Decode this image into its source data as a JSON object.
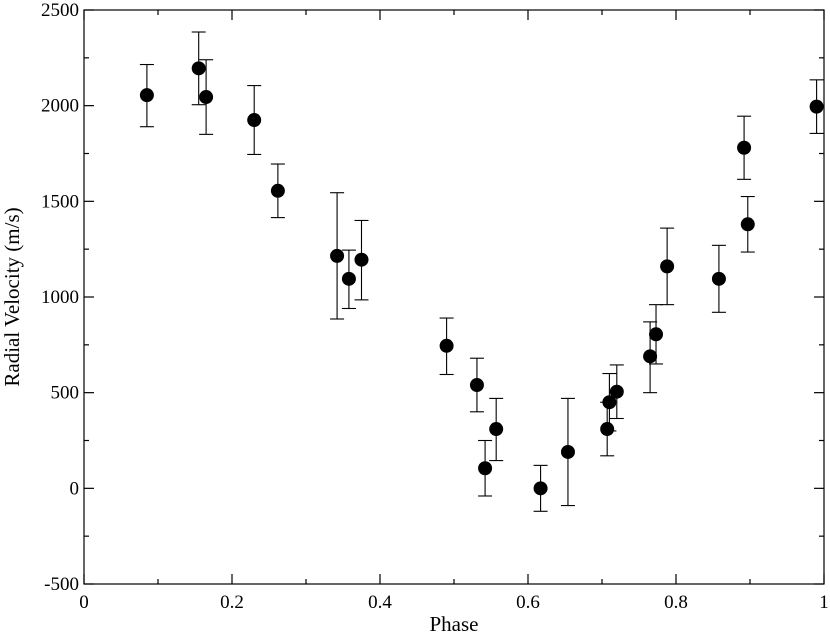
{
  "chart_data": {
    "type": "scatter",
    "title": "",
    "xlabel": "Phase",
    "ylabel": "Radial Velocity (m/s)",
    "xlim": [
      0,
      1
    ],
    "ylim": [
      -500,
      2500
    ],
    "grid": false,
    "legend": "none",
    "x_ticks": [
      "0",
      "0.2",
      "0.4",
      "0.6",
      "0.8",
      "1"
    ],
    "y_ticks": [
      "-500",
      "0",
      "500",
      "1000",
      "1500",
      "2000",
      "2500"
    ],
    "points": [
      {
        "x": 0.085,
        "y": 2055,
        "lo": 1890,
        "hi": 2215
      },
      {
        "x": 0.155,
        "y": 2195,
        "lo": 2005,
        "hi": 2385
      },
      {
        "x": 0.165,
        "y": 2045,
        "lo": 1850,
        "hi": 2240
      },
      {
        "x": 0.23,
        "y": 1925,
        "lo": 1745,
        "hi": 2105
      },
      {
        "x": 0.262,
        "y": 1555,
        "lo": 1415,
        "hi": 1695
      },
      {
        "x": 0.342,
        "y": 1215,
        "lo": 885,
        "hi": 1545
      },
      {
        "x": 0.358,
        "y": 1095,
        "lo": 940,
        "hi": 1245
      },
      {
        "x": 0.375,
        "y": 1195,
        "lo": 985,
        "hi": 1400
      },
      {
        "x": 0.49,
        "y": 745,
        "lo": 595,
        "hi": 890
      },
      {
        "x": 0.531,
        "y": 540,
        "lo": 400,
        "hi": 680
      },
      {
        "x": 0.542,
        "y": 105,
        "lo": -40,
        "hi": 250
      },
      {
        "x": 0.557,
        "y": 310,
        "lo": 145,
        "hi": 470
      },
      {
        "x": 0.617,
        "y": 0,
        "lo": -120,
        "hi": 120
      },
      {
        "x": 0.654,
        "y": 190,
        "lo": -90,
        "hi": 470
      },
      {
        "x": 0.707,
        "y": 310,
        "lo": 170,
        "hi": 450
      },
      {
        "x": 0.71,
        "y": 450,
        "lo": 300,
        "hi": 600
      },
      {
        "x": 0.72,
        "y": 505,
        "lo": 365,
        "hi": 645
      },
      {
        "x": 0.765,
        "y": 690,
        "lo": 500,
        "hi": 870
      },
      {
        "x": 0.773,
        "y": 805,
        "lo": 650,
        "hi": 960
      },
      {
        "x": 0.788,
        "y": 1160,
        "lo": 960,
        "hi": 1360
      },
      {
        "x": 0.858,
        "y": 1095,
        "lo": 920,
        "hi": 1270
      },
      {
        "x": 0.892,
        "y": 1780,
        "lo": 1615,
        "hi": 1945
      },
      {
        "x": 0.897,
        "y": 1380,
        "lo": 1235,
        "hi": 1525
      },
      {
        "x": 0.99,
        "y": 1995,
        "lo": 1855,
        "hi": 2135
      }
    ]
  }
}
